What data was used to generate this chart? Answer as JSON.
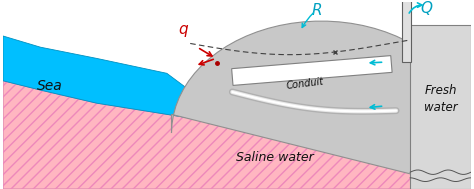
{
  "figsize": [
    4.74,
    1.89
  ],
  "dpi": 100,
  "bg_color": "#ffffff",
  "sea_color": "#00bfff",
  "saline_color_fill": "#ffb6c1",
  "saline_hatch_color": "#ff69b4",
  "gray_aquifer": "#c8c8c8",
  "conduit_color": "#ffffff",
  "conduit_edge": "#808080",
  "text_sea": "Sea",
  "text_saline": "Saline water",
  "text_fresh": "Fresh\nwater",
  "text_conduit": "Conduit",
  "text_q": "q",
  "text_R": "R",
  "text_Q": "Q",
  "arrow_cyan": "#00bcd4",
  "label_color_cyan": "#00a0c0",
  "label_color_red": "#cc0000"
}
